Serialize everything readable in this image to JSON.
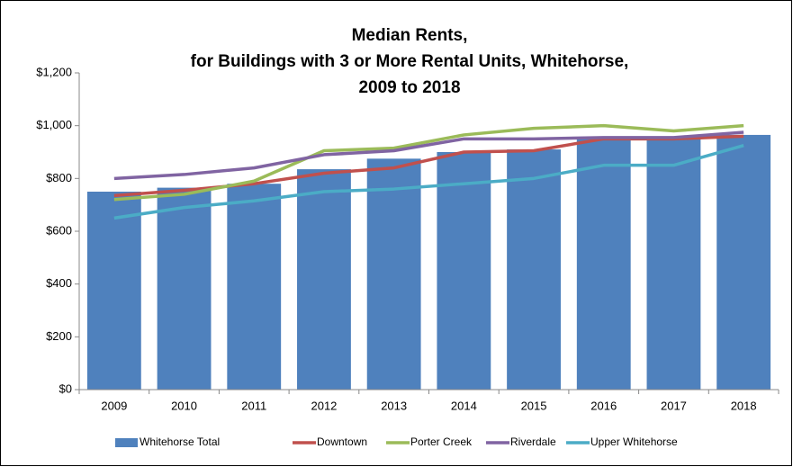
{
  "chart_data": {
    "type": "bar-line",
    "title": [
      "Median Rents,",
      "for Buildings with 3 or More Rental Units, Whitehorse,",
      "2009 to 2018"
    ],
    "categories": [
      "2009",
      "2010",
      "2011",
      "2012",
      "2013",
      "2014",
      "2015",
      "2016",
      "2017",
      "2018"
    ],
    "series": [
      {
        "name": "Whitehorse Total",
        "type": "bar",
        "color": "#4f81bd",
        "values": [
          750,
          765,
          780,
          835,
          875,
          900,
          910,
          950,
          950,
          965
        ]
      },
      {
        "name": "Downtown",
        "type": "line",
        "color": "#c0504d",
        "values": [
          735,
          755,
          780,
          820,
          840,
          900,
          905,
          950,
          950,
          960
        ]
      },
      {
        "name": "Porter Creek",
        "type": "line",
        "color": "#9bbb59",
        "values": [
          720,
          740,
          790,
          905,
          915,
          965,
          990,
          1000,
          980,
          1000
        ]
      },
      {
        "name": "Riverdale",
        "type": "line",
        "color": "#8064a2",
        "values": [
          800,
          815,
          840,
          890,
          905,
          950,
          950,
          955,
          955,
          975
        ]
      },
      {
        "name": "Upper Whitehorse",
        "type": "line",
        "color": "#4bacc6",
        "values": [
          650,
          690,
          715,
          750,
          760,
          780,
          800,
          850,
          850,
          925
        ]
      }
    ],
    "ylim": [
      0,
      1200
    ],
    "yticks": [
      {
        "value": 0,
        "label": "$0"
      },
      {
        "value": 200,
        "label": "$200"
      },
      {
        "value": 400,
        "label": "$400"
      },
      {
        "value": 600,
        "label": "$600"
      },
      {
        "value": 800,
        "label": "$800"
      },
      {
        "value": 1000,
        "label": "$1,000"
      },
      {
        "value": 1200,
        "label": "$1,200"
      }
    ],
    "legend": "bottom"
  }
}
